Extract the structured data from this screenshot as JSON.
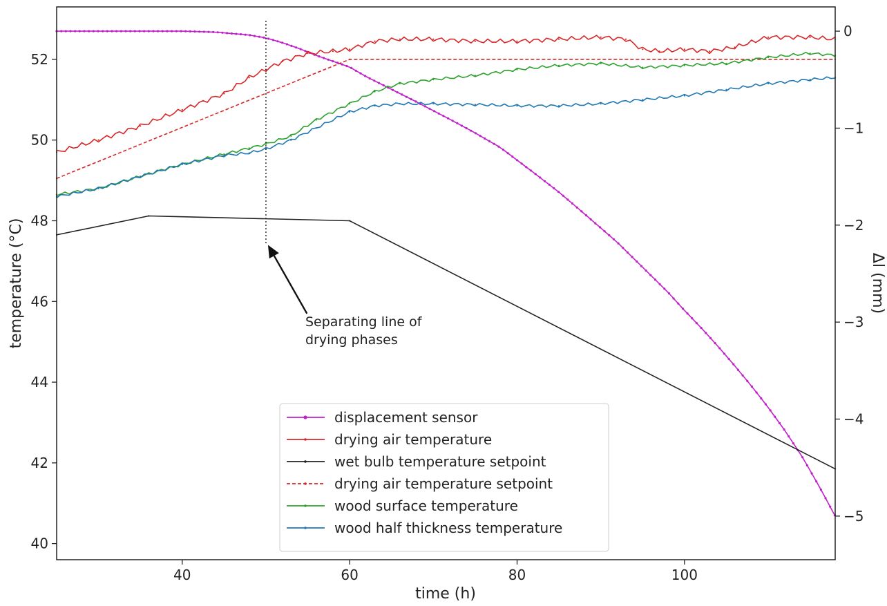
{
  "chart_data": {
    "type": "line",
    "xlabel": "time (h)",
    "ylabel_left": "temperature (°C)",
    "ylabel_right": "Δl (mm)",
    "xlim": [
      25,
      118
    ],
    "ylim_left": [
      39.6,
      53.3
    ],
    "ylim_right": [
      -5.45,
      0.25
    ],
    "x_ticks": [
      40,
      60,
      80,
      100
    ],
    "y_left_ticks": [
      40,
      42,
      44,
      46,
      48,
      50,
      52
    ],
    "y_right_ticks": [
      0,
      -1,
      -2,
      -3,
      -4,
      -5
    ],
    "x_tick_labels": [
      "40",
      "60",
      "80",
      "100"
    ],
    "y_left_tick_labels": [
      "40",
      "42",
      "44",
      "46",
      "48",
      "50",
      "52"
    ],
    "y_right_tick_labels": [
      "0",
      "−1",
      "−2",
      "−3",
      "−4",
      "−5"
    ],
    "grid": false,
    "legend_position": "bottom-center",
    "annotation": {
      "lines": [
        "Separating line of",
        "drying phases"
      ],
      "x_line": 50,
      "arrow_head": [
        50,
        47.4
      ],
      "arrow_tail": [
        54.9,
        45.7
      ]
    },
    "series": [
      {
        "name": "displacement sensor",
        "axis": "right",
        "color": "#c020c8",
        "style": "solid-markers",
        "x": [
          25,
          30,
          35,
          40,
          44,
          48,
          50,
          52,
          54,
          56,
          58,
          60,
          62,
          65,
          68,
          70,
          72,
          75,
          78,
          80,
          82,
          85,
          88,
          90,
          92,
          94,
          96,
          98,
          100,
          102,
          104,
          106,
          108,
          110,
          112,
          114,
          116,
          118
        ],
        "values": [
          0,
          0,
          0,
          0,
          -0.01,
          -0.04,
          -0.07,
          -0.12,
          -0.18,
          -0.25,
          -0.31,
          -0.37,
          -0.47,
          -0.6,
          -0.73,
          -0.82,
          -0.91,
          -1.05,
          -1.2,
          -1.33,
          -1.46,
          -1.66,
          -1.88,
          -2.03,
          -2.18,
          -2.35,
          -2.52,
          -2.69,
          -2.88,
          -3.06,
          -3.25,
          -3.45,
          -3.66,
          -3.88,
          -4.12,
          -4.38,
          -4.68,
          -5.0
        ]
      },
      {
        "name": "drying air temperature",
        "axis": "left",
        "color": "#d62728",
        "style": "solid-noisy",
        "x": [
          25,
          30,
          35,
          40,
          45,
          48,
          50,
          52,
          55,
          58,
          60,
          63,
          66,
          70,
          75,
          80,
          85,
          90,
          93,
          95,
          97,
          100,
          103,
          106,
          110,
          115,
          118
        ],
        "values": [
          49.7,
          50.0,
          50.35,
          50.75,
          51.15,
          51.55,
          51.75,
          51.95,
          52.15,
          52.2,
          52.25,
          52.45,
          52.5,
          52.5,
          52.45,
          52.45,
          52.5,
          52.55,
          52.5,
          52.25,
          52.2,
          52.25,
          52.2,
          52.3,
          52.55,
          52.55,
          52.5
        ]
      },
      {
        "name": "wet bulb temperature setpoint",
        "axis": "left",
        "color": "#222222",
        "style": "solid",
        "x": [
          25,
          36,
          60,
          118
        ],
        "values": [
          47.65,
          48.12,
          48.0,
          41.85
        ]
      },
      {
        "name": "drying air temperature setpoint",
        "axis": "left",
        "color": "#d62728",
        "style": "dashed",
        "x": [
          25,
          60,
          118
        ],
        "values": [
          49.05,
          52.0,
          52.0
        ]
      },
      {
        "name": "wood surface temperature",
        "axis": "left",
        "color": "#2ca02c",
        "style": "solid-noisy",
        "x": [
          25,
          30,
          35,
          40,
          45,
          48,
          50,
          53,
          56,
          60,
          63,
          66,
          70,
          75,
          80,
          85,
          90,
          95,
          100,
          105,
          110,
          115,
          118
        ],
        "values": [
          48.65,
          48.8,
          49.1,
          49.4,
          49.65,
          49.8,
          49.9,
          50.1,
          50.5,
          50.9,
          51.2,
          51.4,
          51.5,
          51.6,
          51.75,
          51.85,
          51.9,
          51.8,
          51.85,
          51.9,
          52.05,
          52.15,
          52.1
        ]
      },
      {
        "name": "wood half thickness temperature",
        "axis": "left",
        "color": "#1f77b4",
        "style": "solid-noisy",
        "x": [
          25,
          30,
          35,
          40,
          45,
          48,
          50,
          53,
          56,
          60,
          63,
          66,
          70,
          75,
          80,
          85,
          90,
          95,
          100,
          105,
          110,
          115,
          118
        ],
        "values": [
          48.6,
          48.8,
          49.1,
          49.4,
          49.62,
          49.68,
          49.78,
          50.0,
          50.3,
          50.7,
          50.85,
          50.9,
          50.9,
          50.88,
          50.85,
          50.85,
          50.9,
          51.0,
          51.1,
          51.25,
          51.4,
          51.5,
          51.55
        ]
      }
    ]
  }
}
